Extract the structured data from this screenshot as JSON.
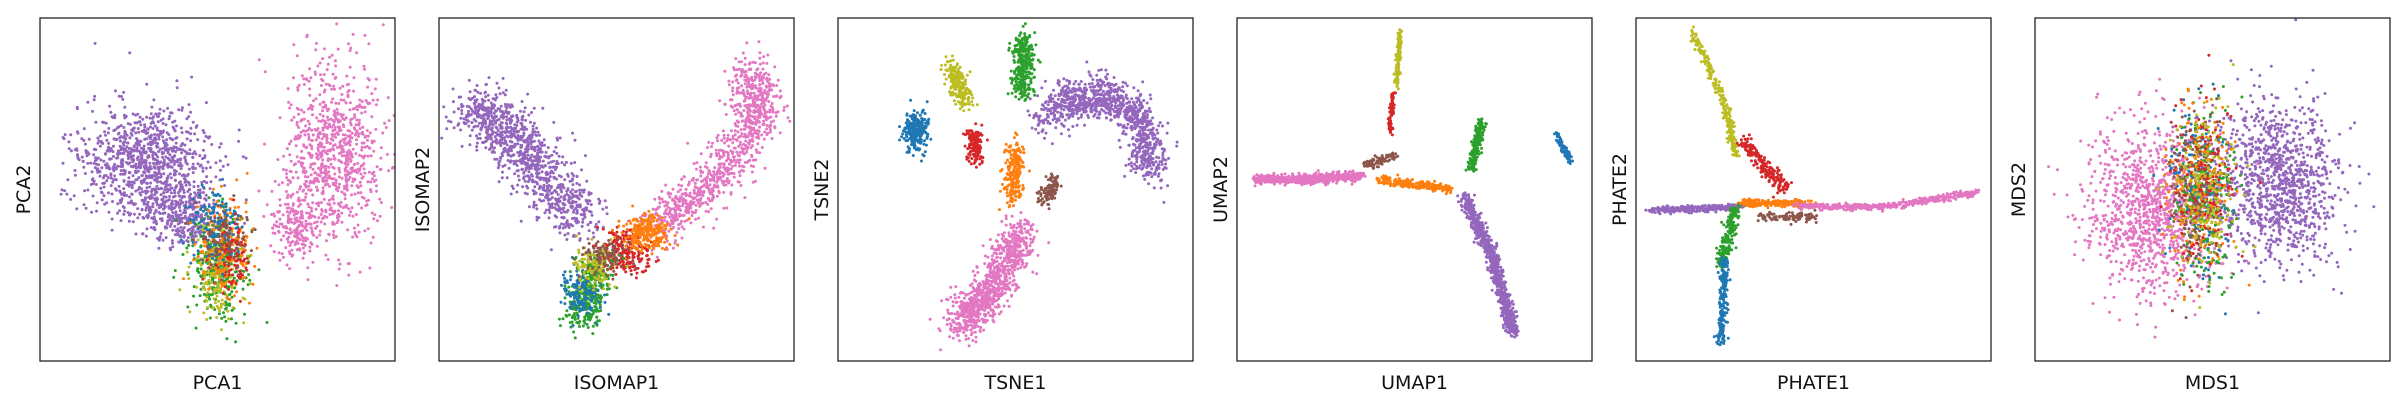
{
  "colors": {
    "blue": "#1f77b4",
    "orange": "#ff7f0e",
    "green": "#2ca02c",
    "red": "#d62728",
    "purple": "#9467bd",
    "brown": "#8c564b",
    "pink": "#e377c2",
    "olive": "#bcbd22",
    "frame": "#222222"
  },
  "chart_data": [
    {
      "type": "scatter",
      "xlabel": "PCA1",
      "ylabel": "PCA2",
      "grid": false,
      "ticks": false,
      "legend": "none",
      "clusters": [
        {
          "color": "purple",
          "center": [
            0.3,
            0.42
          ],
          "spread": [
            0.17,
            0.15
          ],
          "count": 950
        },
        {
          "color": "purple",
          "center": [
            0.4,
            0.58
          ],
          "spread": [
            0.1,
            0.08
          ],
          "count": 300
        },
        {
          "color": "pink",
          "center": [
            0.83,
            0.4
          ],
          "spread": [
            0.12,
            0.24
          ],
          "count": 800
        },
        {
          "color": "pink",
          "center": [
            0.72,
            0.6
          ],
          "spread": [
            0.07,
            0.1
          ],
          "count": 200
        },
        {
          "color": "green",
          "center": [
            0.5,
            0.72
          ],
          "spread": [
            0.07,
            0.14
          ],
          "count": 320
        },
        {
          "color": "olive",
          "center": [
            0.5,
            0.74
          ],
          "spread": [
            0.07,
            0.12
          ],
          "count": 180
        },
        {
          "color": "orange",
          "center": [
            0.52,
            0.66
          ],
          "spread": [
            0.07,
            0.11
          ],
          "count": 200
        },
        {
          "color": "blue",
          "center": [
            0.5,
            0.6
          ],
          "spread": [
            0.07,
            0.09
          ],
          "count": 150
        },
        {
          "color": "red",
          "center": [
            0.54,
            0.7
          ],
          "spread": [
            0.05,
            0.09
          ],
          "count": 90
        },
        {
          "color": "brown",
          "center": [
            0.52,
            0.64
          ],
          "spread": [
            0.06,
            0.08
          ],
          "count": 80
        }
      ]
    },
    {
      "type": "scatter",
      "xlabel": "ISOMAP1",
      "ylabel": "ISOMAP2",
      "grid": false,
      "ticks": false,
      "legend": "none",
      "clusters": [
        {
          "color": "purple",
          "path": [
            [
              0.1,
              0.25
            ],
            [
              0.25,
              0.4
            ],
            [
              0.4,
              0.6
            ]
          ],
          "spread": [
            0.08,
            0.07
          ],
          "count": 1000
        },
        {
          "color": "pink",
          "path": [
            [
              0.6,
              0.62
            ],
            [
              0.78,
              0.48
            ],
            [
              0.9,
              0.3
            ],
            [
              0.88,
              0.15
            ]
          ],
          "spread": [
            0.06,
            0.06
          ],
          "count": 950
        },
        {
          "color": "red",
          "center": [
            0.52,
            0.68
          ],
          "spread": [
            0.07,
            0.06
          ],
          "count": 220
        },
        {
          "color": "orange",
          "center": [
            0.58,
            0.63
          ],
          "spread": [
            0.06,
            0.05
          ],
          "count": 250
        },
        {
          "color": "green",
          "path": [
            [
              0.45,
              0.72
            ],
            [
              0.4,
              0.88
            ]
          ],
          "spread": [
            0.05,
            0.05
          ],
          "count": 350
        },
        {
          "color": "blue",
          "center": [
            0.4,
            0.8
          ],
          "spread": [
            0.05,
            0.06
          ],
          "count": 140
        },
        {
          "color": "olive",
          "center": [
            0.44,
            0.72
          ],
          "spread": [
            0.05,
            0.06
          ],
          "count": 120
        },
        {
          "color": "brown",
          "center": [
            0.47,
            0.7
          ],
          "spread": [
            0.05,
            0.05
          ],
          "count": 100
        }
      ]
    },
    {
      "type": "scatter",
      "xlabel": "TSNE1",
      "ylabel": "TSNE2",
      "grid": false,
      "ticks": false,
      "legend": "none",
      "clusters": [
        {
          "color": "blue",
          "center": [
            0.22,
            0.33
          ],
          "spread": [
            0.03,
            0.05
          ],
          "count": 280
        },
        {
          "color": "olive",
          "path": [
            [
              0.32,
              0.14
            ],
            [
              0.36,
              0.25
            ]
          ],
          "spread": [
            0.025,
            0.025
          ],
          "count": 220
        },
        {
          "color": "red",
          "path": [
            [
              0.38,
              0.33
            ],
            [
              0.39,
              0.42
            ]
          ],
          "spread": [
            0.02,
            0.02
          ],
          "count": 150
        },
        {
          "color": "green",
          "path": [
            [
              0.52,
              0.06
            ],
            [
              0.52,
              0.22
            ]
          ],
          "spread": [
            0.03,
            0.03
          ],
          "count": 320
        },
        {
          "color": "orange",
          "path": [
            [
              0.5,
              0.37
            ],
            [
              0.49,
              0.53
            ]
          ],
          "spread": [
            0.025,
            0.025
          ],
          "count": 220
        },
        {
          "color": "brown",
          "path": [
            [
              0.61,
              0.47
            ],
            [
              0.58,
              0.54
            ]
          ],
          "spread": [
            0.02,
            0.02
          ],
          "count": 110
        },
        {
          "color": "purple",
          "path": [
            [
              0.58,
              0.28
            ],
            [
              0.72,
              0.22
            ],
            [
              0.85,
              0.28
            ],
            [
              0.88,
              0.45
            ]
          ],
          "spread": [
            0.05,
            0.06
          ],
          "count": 1000
        },
        {
          "color": "pink",
          "path": [
            [
              0.52,
              0.62
            ],
            [
              0.44,
              0.78
            ],
            [
              0.34,
              0.9
            ]
          ],
          "spread": [
            0.05,
            0.05
          ],
          "count": 900
        }
      ]
    },
    {
      "type": "scatter",
      "xlabel": "UMAP1",
      "ylabel": "UMAP2",
      "grid": false,
      "ticks": false,
      "legend": "none",
      "clusters": [
        {
          "color": "pink",
          "path": [
            [
              0.05,
              0.47
            ],
            [
              0.2,
              0.47
            ],
            [
              0.35,
              0.46
            ]
          ],
          "spread": [
            0.012,
            0.012
          ],
          "count": 700
        },
        {
          "color": "brown",
          "path": [
            [
              0.36,
              0.43
            ],
            [
              0.45,
              0.4
            ]
          ],
          "spread": [
            0.012,
            0.012
          ],
          "count": 90
        },
        {
          "color": "olive",
          "path": [
            [
              0.46,
              0.04
            ],
            [
              0.45,
              0.2
            ]
          ],
          "spread": [
            0.006,
            0.008
          ],
          "count": 120
        },
        {
          "color": "red",
          "path": [
            [
              0.44,
              0.22
            ],
            [
              0.43,
              0.34
            ]
          ],
          "spread": [
            0.006,
            0.008
          ],
          "count": 80
        },
        {
          "color": "orange",
          "path": [
            [
              0.4,
              0.47
            ],
            [
              0.6,
              0.5
            ]
          ],
          "spread": [
            0.014,
            0.012
          ],
          "count": 220
        },
        {
          "color": "green",
          "path": [
            [
              0.69,
              0.3
            ],
            [
              0.66,
              0.44
            ]
          ],
          "spread": [
            0.012,
            0.012
          ],
          "count": 200
        },
        {
          "color": "purple",
          "path": [
            [
              0.64,
              0.52
            ],
            [
              0.72,
              0.7
            ],
            [
              0.78,
              0.92
            ]
          ],
          "spread": [
            0.016,
            0.018
          ],
          "count": 800
        },
        {
          "color": "blue",
          "path": [
            [
              0.9,
              0.34
            ],
            [
              0.94,
              0.42
            ]
          ],
          "spread": [
            0.008,
            0.008
          ],
          "count": 70
        }
      ]
    },
    {
      "type": "scatter",
      "xlabel": "PHATE1",
      "ylabel": "PHATE2",
      "grid": false,
      "ticks": false,
      "legend": "none",
      "clusters": [
        {
          "color": "olive",
          "path": [
            [
              0.16,
              0.04
            ],
            [
              0.25,
              0.25
            ],
            [
              0.28,
              0.4
            ]
          ],
          "spread": [
            0.01,
            0.012
          ],
          "count": 250
        },
        {
          "color": "red",
          "path": [
            [
              0.3,
              0.36
            ],
            [
              0.42,
              0.5
            ]
          ],
          "spread": [
            0.02,
            0.018
          ],
          "count": 200
        },
        {
          "color": "purple",
          "path": [
            [
              0.04,
              0.56
            ],
            [
              0.3,
              0.55
            ]
          ],
          "spread": [
            0.02,
            0.008
          ],
          "count": 300
        },
        {
          "color": "orange",
          "path": [
            [
              0.3,
              0.54
            ],
            [
              0.48,
              0.54
            ]
          ],
          "spread": [
            0.02,
            0.01
          ],
          "count": 200
        },
        {
          "color": "pink",
          "path": [
            [
              0.46,
              0.55
            ],
            [
              0.7,
              0.55
            ],
            [
              0.96,
              0.51
            ]
          ],
          "spread": [
            0.02,
            0.008
          ],
          "count": 500
        },
        {
          "color": "brown",
          "path": [
            [
              0.35,
              0.58
            ],
            [
              0.5,
              0.58
            ]
          ],
          "spread": [
            0.015,
            0.012
          ],
          "count": 100
        },
        {
          "color": "green",
          "path": [
            [
              0.28,
              0.55
            ],
            [
              0.24,
              0.72
            ]
          ],
          "spread": [
            0.015,
            0.015
          ],
          "count": 200
        },
        {
          "color": "blue",
          "path": [
            [
              0.25,
              0.7
            ],
            [
              0.24,
              0.95
            ]
          ],
          "spread": [
            0.012,
            0.012
          ],
          "count": 180
        }
      ]
    },
    {
      "type": "scatter",
      "xlabel": "MDS1",
      "ylabel": "MDS2",
      "grid": false,
      "ticks": false,
      "legend": "none",
      "clusters": [
        {
          "color": "pink",
          "center": [
            0.33,
            0.55
          ],
          "spread": [
            0.17,
            0.22
          ],
          "count": 1100
        },
        {
          "color": "purple",
          "center": [
            0.68,
            0.48
          ],
          "spread": [
            0.16,
            0.21
          ],
          "count": 1100
        },
        {
          "color": "blue",
          "center": [
            0.45,
            0.5
          ],
          "spread": [
            0.08,
            0.22
          ],
          "count": 200
        },
        {
          "color": "green",
          "center": [
            0.48,
            0.5
          ],
          "spread": [
            0.08,
            0.22
          ],
          "count": 230
        },
        {
          "color": "orange",
          "center": [
            0.46,
            0.5
          ],
          "spread": [
            0.08,
            0.22
          ],
          "count": 220
        },
        {
          "color": "red",
          "center": [
            0.47,
            0.5
          ],
          "spread": [
            0.08,
            0.22
          ],
          "count": 180
        },
        {
          "color": "brown",
          "center": [
            0.45,
            0.5
          ],
          "spread": [
            0.07,
            0.22
          ],
          "count": 140
        },
        {
          "color": "olive",
          "center": [
            0.48,
            0.5
          ],
          "spread": [
            0.08,
            0.22
          ],
          "count": 180
        }
      ]
    }
  ]
}
